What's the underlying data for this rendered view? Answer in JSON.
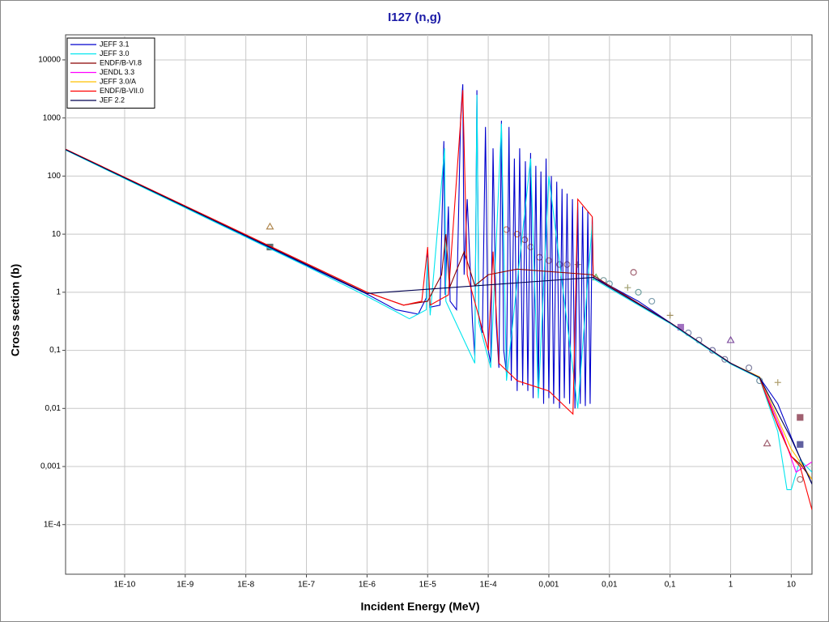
{
  "chart_data": {
    "type": "line",
    "title": "I127 (n,g)",
    "x_label": "Incident Energy (MeV)",
    "y_label": "Cross section (b)",
    "log_x": true,
    "log_y": true,
    "grid": true,
    "legend": "top-left",
    "xlim": [
      1.06e-11,
      22
    ],
    "ylim": [
      1.4e-05,
      27000
    ],
    "xticks": [
      {
        "value": 1e-10,
        "label": "1E-10"
      },
      {
        "value": 1e-09,
        "label": "1E-9"
      },
      {
        "value": 1e-08,
        "label": "1E-8"
      },
      {
        "value": 1e-07,
        "label": "1E-7"
      },
      {
        "value": 1e-06,
        "label": "1E-6"
      },
      {
        "value": 1e-05,
        "label": "1E-5"
      },
      {
        "value": 0.0001,
        "label": "1E-4"
      },
      {
        "value": 0.001,
        "label": "0,001"
      },
      {
        "value": 0.01,
        "label": "0,01"
      },
      {
        "value": 0.1,
        "label": "0,1"
      },
      1,
      10
    ],
    "yticks": [
      10000,
      1000,
      100,
      10,
      1,
      {
        "value": 0.1,
        "label": "0,1"
      },
      {
        "value": 0.01,
        "label": "0,01"
      },
      {
        "value": 0.001,
        "label": "0,001"
      },
      {
        "value": 0.0001,
        "label": "1E-4"
      }
    ],
    "series": [
      {
        "name": "JEFF 3.1",
        "color": "#0000cd",
        "x": [
          1.06e-11,
          1e-09,
          1e-07,
          1e-06,
          3e-06,
          7e-06,
          9.5e-06,
          1e-05,
          1.08e-05,
          1.6e-05,
          1.85e-05,
          1.95e-05,
          2.2e-05,
          2.35e-05,
          3e-05,
          3.5e-05,
          3.8e-05,
          4e-05,
          4.5e-05,
          5.5e-05,
          6e-05,
          6.5e-05,
          7e-05,
          8e-05,
          9e-05,
          0.0001,
          0.00011,
          0.00012,
          0.000135,
          0.00015,
          0.000165,
          0.00018,
          0.0002,
          0.00022,
          0.00024,
          0.00027,
          0.0003,
          0.00033,
          0.00037,
          0.00041,
          0.00045,
          0.0005,
          0.00055,
          0.00061,
          0.00067,
          0.00074,
          0.00082,
          0.0009,
          0.001,
          0.0011,
          0.0012,
          0.00135,
          0.0015,
          0.00165,
          0.0018,
          0.002,
          0.0022,
          0.00245,
          0.0027,
          0.003,
          0.0033,
          0.0036,
          0.004,
          0.0044,
          0.0048,
          0.0052,
          0.0054,
          0.01,
          0.03,
          0.1,
          0.3,
          1,
          3,
          6,
          10,
          14,
          22
        ],
        "values": [
          285,
          29,
          2.9,
          0.93,
          0.5,
          0.42,
          0.8,
          5,
          0.55,
          0.6,
          400,
          0.9,
          30,
          0.7,
          0.5,
          1000,
          3800,
          2,
          40,
          0.3,
          0.08,
          3000,
          0.4,
          0.2,
          700,
          0.1,
          0.06,
          300,
          0.3,
          0.05,
          900,
          0.1,
          0.04,
          700,
          0.03,
          200,
          0.02,
          300,
          0.025,
          180,
          0.02,
          250,
          0.015,
          150,
          0.02,
          120,
          0.012,
          200,
          0.015,
          100,
          0.012,
          80,
          0.01,
          60,
          0.015,
          50,
          0.012,
          40,
          0.01,
          35,
          0.012,
          30,
          0.011,
          25,
          0.012,
          20,
          1.8,
          1.3,
          0.7,
          0.3,
          0.14,
          0.06,
          0.034,
          0.012,
          0.0032,
          0.0014,
          0.0005
        ]
      },
      {
        "name": "JEFF 3.0",
        "color": "#00e5ee",
        "x": [
          1.06e-11,
          1e-07,
          1e-06,
          5e-06,
          9.5e-06,
          1e-05,
          1.1e-05,
          1.9e-05,
          2e-05,
          6e-05,
          6.5e-05,
          7e-05,
          0.00011,
          0.000165,
          0.0002,
          0.0005,
          0.00067,
          0.001,
          0.003,
          0.0052,
          0.0054,
          0.1,
          1,
          3,
          6,
          8.5,
          10,
          14,
          22
        ],
        "values": [
          280,
          2.8,
          0.85,
          0.35,
          0.5,
          4,
          0.4,
          300,
          0.7,
          0.06,
          2500,
          0.3,
          0.05,
          800,
          0.03,
          200,
          0.015,
          100,
          0.01,
          15,
          1.7,
          0.29,
          0.058,
          0.033,
          0.004,
          0.0004,
          0.0004,
          0.0013,
          0.0008
        ]
      },
      {
        "name": "ENDF/B-VI.8",
        "color": "#8b0000",
        "x": [
          1.06e-11,
          1e-06,
          4e-06,
          1e-05,
          1.7e-05,
          2e-05,
          2.3e-05,
          4e-05,
          6e-05,
          0.0001,
          0.0003,
          0.0052,
          0.01,
          0.1,
          1,
          3,
          6,
          10,
          14,
          22
        ],
        "values": [
          290,
          1.0,
          0.6,
          0.7,
          2,
          10,
          1.2,
          5,
          1.3,
          2,
          2.5,
          2,
          1.3,
          0.3,
          0.06,
          0.034,
          0.005,
          0.0015,
          0.0011,
          0.0006
        ]
      },
      {
        "name": "JENDL 3.3",
        "color": "#ff00ff",
        "x": [
          0.0054,
          0.1,
          1,
          3,
          7,
          12,
          22
        ],
        "values": [
          1.8,
          0.3,
          0.06,
          0.034,
          0.004,
          0.0008,
          0.0012
        ]
      },
      {
        "name": "JEFF 3.0/A",
        "color": "#ffc000",
        "x": [
          0.1,
          1,
          3,
          10,
          22
        ],
        "values": [
          0.3,
          0.06,
          0.035,
          0.002,
          0.0006
        ]
      },
      {
        "name": "ENDF/B-VII.0",
        "color": "#ff0000",
        "x": [
          1.06e-11,
          1e-06,
          4e-06,
          8e-06,
          1e-05,
          1.1e-05,
          2.2e-05,
          3.8e-05,
          4.5e-05,
          0.0001,
          0.00012,
          0.00015,
          0.0003,
          0.001,
          0.0025,
          0.003,
          0.0052,
          0.0054,
          0.1,
          1,
          3,
          5,
          10,
          14,
          22
        ],
        "values": [
          290,
          1.0,
          0.6,
          0.7,
          6,
          0.6,
          0.9,
          3000,
          2,
          0.1,
          5,
          0.06,
          0.03,
          0.02,
          0.008,
          40,
          20,
          1.8,
          0.3,
          0.06,
          0.034,
          0.008,
          0.0015,
          0.001,
          0.00018
        ]
      },
      {
        "name": "JEF 2.2",
        "color": "#000050",
        "x": [
          1.06e-11,
          1e-06,
          0.0054,
          0.1,
          1,
          3,
          10,
          22
        ],
        "values": [
          285,
          0.95,
          1.8,
          0.3,
          0.06,
          0.034,
          0.003,
          0.0005
        ]
      }
    ],
    "points": {
      "x": [
        2.5e-08,
        2.5e-08,
        0.0002,
        0.0003,
        0.0004,
        0.0005,
        0.0007,
        0.001,
        0.0015,
        0.002,
        0.003,
        0.006,
        0.008,
        0.01,
        0.02,
        0.025,
        0.03,
        0.05,
        0.1,
        0.15,
        0.2,
        0.3,
        0.5,
        1,
        0.8,
        2,
        3,
        4,
        6,
        14,
        14,
        14
      ],
      "values": [
        6,
        13.5,
        12,
        10,
        8,
        6,
        4,
        3.5,
        3,
        3,
        3,
        1.8,
        1.6,
        1.4,
        1.2,
        2.2,
        1,
        0.7,
        0.4,
        0.25,
        0.2,
        0.15,
        0.1,
        0.15,
        0.07,
        0.05,
        0.03,
        0.0025,
        0.028,
        0.007,
        0.0024,
        0.0006
      ],
      "markers": [
        "square",
        "triangle",
        "circle",
        "circle",
        "circle",
        "circle",
        "circle",
        "circle",
        "circle",
        "circle",
        "plus",
        "triangle",
        "circle",
        "circle",
        "plus",
        "circle",
        "circle",
        "circle",
        "plus",
        "square",
        "circle",
        "circle",
        "circle",
        "triangle",
        "circle",
        "circle",
        "circle",
        "triangle",
        "plus",
        "square",
        "square",
        "circle"
      ],
      "colors": [
        "#607070",
        "#b08850",
        "#d08060",
        "#e08040",
        "#c07050",
        "#d09060",
        "#b07060",
        "#c08070",
        "#a07070",
        "#b08070",
        "#a09070",
        "#60b060",
        "#80a0a0",
        "#70a0b0",
        "#a0a070",
        "#a06070",
        "#70a0a0",
        "#80a0b0",
        "#a09060",
        "#a070c0",
        "#8090b0",
        "#8080a0",
        "#7070a0",
        "#8050a0",
        "#8080a0",
        "#8080a0",
        "#7090a0",
        "#a06070",
        "#b0a070",
        "#a06070",
        "#6060a0",
        "#a08080"
      ]
    }
  }
}
